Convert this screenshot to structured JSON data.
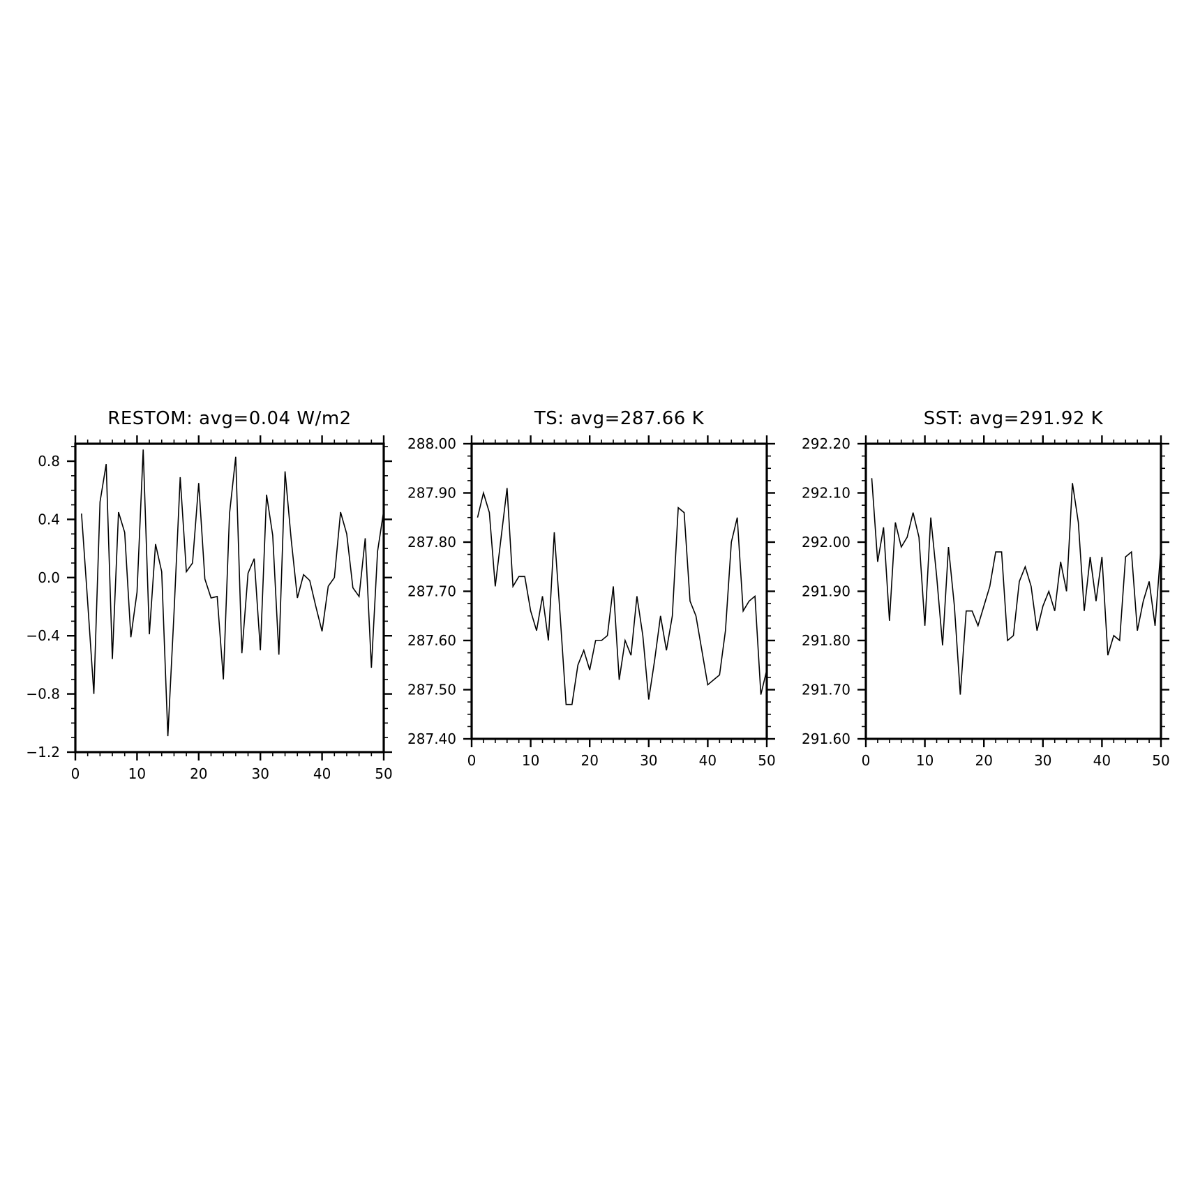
{
  "chart_data": [
    {
      "type": "line",
      "title": "RESTOM: avg=0.04 W/m2",
      "xlabel": "",
      "ylabel": "",
      "xlim": [
        0,
        50
      ],
      "ylim": [
        -1.2,
        0.92
      ],
      "xticks": [
        0,
        10,
        20,
        30,
        40,
        50
      ],
      "xtick_labels": [
        "0",
        "10",
        "20",
        "30",
        "40",
        "50"
      ],
      "yticks": [
        -1.2,
        -0.8,
        -0.4,
        0.0,
        0.4,
        0.8
      ],
      "ytick_labels": [
        "−1.2",
        "−0.8",
        "−0.4",
        "0.0",
        "0.4",
        "0.8"
      ],
      "grid": false,
      "x": [
        1,
        2,
        3,
        4,
        5,
        6,
        7,
        8,
        9,
        10,
        11,
        12,
        13,
        14,
        15,
        16,
        17,
        18,
        19,
        20,
        21,
        22,
        23,
        24,
        25,
        26,
        27,
        28,
        29,
        30,
        31,
        32,
        33,
        34,
        35,
        36,
        37,
        38,
        39,
        40,
        41,
        42,
        43,
        44,
        45,
        46,
        47,
        48,
        49,
        50
      ],
      "series": [
        {
          "values": [
            0.44,
            -0.17,
            -0.8,
            0.52,
            0.78,
            -0.56,
            0.45,
            0.31,
            -0.41,
            -0.1,
            0.88,
            -0.39,
            0.23,
            0.04,
            -1.09,
            -0.24,
            0.69,
            0.04,
            0.1,
            0.65,
            -0.01,
            -0.14,
            -0.13,
            -0.7,
            0.44,
            0.83,
            -0.52,
            0.03,
            0.13,
            -0.5,
            0.57,
            0.29,
            -0.53,
            0.73,
            0.26,
            -0.14,
            0.02,
            -0.02,
            -0.2,
            -0.37,
            -0.06,
            0.0,
            0.45,
            0.3,
            -0.07,
            -0.13,
            0.27,
            -0.62,
            0.18,
            0.46
          ]
        }
      ]
    },
    {
      "type": "line",
      "title": "TS: avg=287.66 K",
      "xlabel": "",
      "ylabel": "",
      "xlim": [
        0,
        50
      ],
      "ylim": [
        287.4,
        288.0
      ],
      "xticks": [
        0,
        10,
        20,
        30,
        40,
        50
      ],
      "xtick_labels": [
        "0",
        "10",
        "20",
        "30",
        "40",
        "50"
      ],
      "yticks": [
        287.4,
        287.5,
        287.6,
        287.7,
        287.8,
        287.9,
        288.0
      ],
      "ytick_labels": [
        "287.40",
        "287.50",
        "287.60",
        "287.70",
        "287.80",
        "287.90",
        "288.00"
      ],
      "grid": false,
      "x": [
        1,
        2,
        3,
        4,
        5,
        6,
        7,
        8,
        9,
        10,
        11,
        12,
        13,
        14,
        15,
        16,
        17,
        18,
        19,
        20,
        21,
        22,
        23,
        24,
        25,
        26,
        27,
        28,
        29,
        30,
        31,
        32,
        33,
        34,
        35,
        36,
        37,
        38,
        39,
        40,
        41,
        42,
        43,
        44,
        45,
        46,
        47,
        48,
        49,
        50
      ],
      "series": [
        {
          "values": [
            287.85,
            287.9,
            287.86,
            287.71,
            287.81,
            287.91,
            287.71,
            287.73,
            287.73,
            287.66,
            287.62,
            287.69,
            287.6,
            287.82,
            287.65,
            287.47,
            287.47,
            287.55,
            287.58,
            287.54,
            287.6,
            287.6,
            287.61,
            287.71,
            287.52,
            287.6,
            287.57,
            287.69,
            287.61,
            287.48,
            287.56,
            287.65,
            287.58,
            287.65,
            287.87,
            287.86,
            287.68,
            287.65,
            287.58,
            287.51,
            287.52,
            287.53,
            287.62,
            287.8,
            287.85,
            287.66,
            287.68,
            287.69,
            287.49,
            287.54
          ]
        }
      ]
    },
    {
      "type": "line",
      "title": "SST: avg=291.92 K",
      "xlabel": "",
      "ylabel": "",
      "xlim": [
        0,
        50
      ],
      "ylim": [
        291.6,
        292.2
      ],
      "xticks": [
        0,
        10,
        20,
        30,
        40,
        50
      ],
      "xtick_labels": [
        "0",
        "10",
        "20",
        "30",
        "40",
        "50"
      ],
      "yticks": [
        291.6,
        291.7,
        291.8,
        291.9,
        292.0,
        292.1,
        292.2
      ],
      "ytick_labels": [
        "291.60",
        "291.70",
        "291.80",
        "291.90",
        "292.00",
        "292.10",
        "292.20"
      ],
      "grid": false,
      "x": [
        1,
        2,
        3,
        4,
        5,
        6,
        7,
        8,
        9,
        10,
        11,
        12,
        13,
        14,
        15,
        16,
        17,
        18,
        19,
        20,
        21,
        22,
        23,
        24,
        25,
        26,
        27,
        28,
        29,
        30,
        31,
        32,
        33,
        34,
        35,
        36,
        37,
        38,
        39,
        40,
        41,
        42,
        43,
        44,
        45,
        46,
        47,
        48,
        49,
        50
      ],
      "series": [
        {
          "values": [
            292.13,
            291.96,
            292.03,
            291.84,
            292.04,
            291.99,
            292.01,
            292.06,
            292.01,
            291.83,
            292.05,
            291.93,
            291.79,
            291.99,
            291.87,
            291.69,
            291.86,
            291.86,
            291.83,
            291.87,
            291.91,
            291.98,
            291.98,
            291.8,
            291.81,
            291.92,
            291.95,
            291.91,
            291.82,
            291.87,
            291.9,
            291.86,
            291.96,
            291.9,
            292.12,
            292.04,
            291.86,
            291.97,
            291.88,
            291.97,
            291.77,
            291.81,
            291.8,
            291.97,
            291.98,
            291.82,
            291.88,
            291.92,
            291.83,
            291.99
          ]
        }
      ]
    }
  ]
}
